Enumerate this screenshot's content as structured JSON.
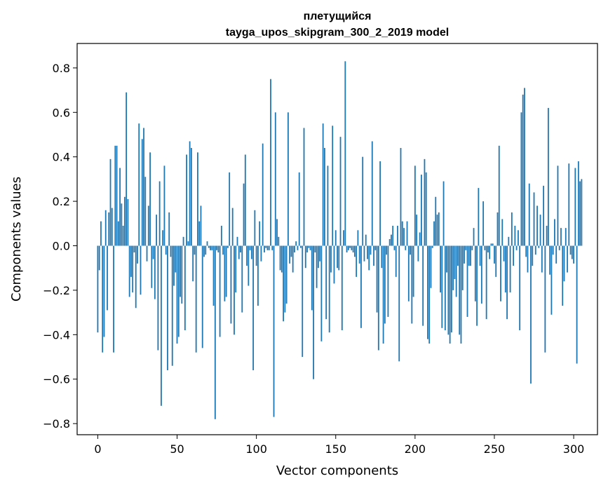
{
  "chart_data": {
    "type": "bar",
    "title_line1": "плетущийся",
    "title_line2": "tayga_upos_skipgram_300_2_2019 model",
    "xlabel": "Vector components",
    "ylabel": "Components values",
    "xlim": [
      -13,
      315
    ],
    "ylim": [
      -0.85,
      0.91
    ],
    "xticks": [
      0,
      50,
      100,
      150,
      200,
      250,
      300
    ],
    "xtick_labels": [
      "0",
      "50",
      "100",
      "150",
      "200",
      "250",
      "300"
    ],
    "yticks": [
      -0.8,
      -0.6,
      -0.4,
      -0.2,
      0.0,
      0.2,
      0.4,
      0.6,
      0.8
    ],
    "ytick_labels": [
      "−0.8",
      "−0.6",
      "−0.4",
      "−0.2",
      "0.0",
      "0.2",
      "0.4",
      "0.6",
      "0.8"
    ],
    "bar_color": "#1f77b4",
    "values": [
      -0.39,
      -0.11,
      0.11,
      -0.48,
      -0.41,
      0.16,
      -0.29,
      0.15,
      0.39,
      0.17,
      -0.48,
      0.45,
      0.45,
      0.11,
      0.35,
      0.19,
      0.09,
      0.22,
      0.69,
      0.21,
      -0.23,
      -0.14,
      -0.21,
      -0.03,
      -0.28,
      -0.08,
      0.55,
      -0.22,
      0.48,
      0.53,
      0.31,
      -0.07,
      0.18,
      0.42,
      -0.19,
      -0.06,
      -0.24,
      0.14,
      -0.47,
      0.29,
      -0.72,
      0.07,
      0.36,
      -0.04,
      -0.56,
      0.15,
      -0.05,
      -0.54,
      -0.18,
      -0.12,
      -0.44,
      -0.41,
      -0.23,
      -0.26,
      0.04,
      -0.38,
      0.41,
      0.02,
      0.47,
      0.44,
      -0.16,
      -0.04,
      -0.48,
      0.42,
      0.11,
      0.18,
      -0.46,
      -0.05,
      -0.04,
      0.02,
      -0.01,
      -0.02,
      -0.02,
      -0.27,
      -0.78,
      -0.02,
      -0.03,
      -0.41,
      0.09,
      -0.04,
      -0.25,
      -0.23,
      -0.01,
      0.33,
      -0.35,
      0.17,
      -0.4,
      -0.21,
      0.04,
      -0.06,
      -0.03,
      -0.3,
      0.28,
      0.41,
      -0.09,
      -0.18,
      -0.02,
      -0.06,
      -0.56,
      0.16,
      -0.09,
      -0.27,
      0.11,
      -0.07,
      0.46,
      -0.03,
      -0.01,
      -0.02,
      -0.02,
      0.75,
      -0.02,
      -0.77,
      0.6,
      0.12,
      0.04,
      -0.11,
      -0.12,
      -0.34,
      -0.3,
      -0.26,
      0.6,
      -0.08,
      -0.05,
      -0.12,
      -0.03,
      0.02,
      -0.02,
      0.33,
      -0.01,
      -0.5,
      0.53,
      -0.1,
      -0.03,
      -0.01,
      -0.02,
      -0.29,
      -0.6,
      -0.03,
      -0.19,
      -0.1,
      -0.07,
      -0.43,
      0.55,
      0.44,
      -0.33,
      0.36,
      -0.39,
      -0.12,
      0.54,
      -0.17,
      0.07,
      -0.1,
      -0.11,
      0.49,
      -0.38,
      0.07,
      0.83,
      -0.03,
      -0.02,
      -0.01,
      -0.02,
      -0.03,
      -0.05,
      -0.14,
      0.07,
      -0.08,
      -0.37,
      0.4,
      -0.07,
      0.05,
      -0.06,
      -0.11,
      -0.04,
      0.47,
      -0.09,
      -0.02,
      -0.3,
      -0.47,
      0.38,
      -0.1,
      -0.44,
      -0.35,
      -0.04,
      -0.32,
      0.03,
      0.05,
      0.09,
      -0.02,
      -0.14,
      0.09,
      -0.52,
      0.44,
      0.11,
      0.08,
      -0.02,
      0.11,
      -0.25,
      -0.04,
      -0.35,
      -0.23,
      0.36,
      0.14,
      -0.07,
      0.06,
      0.32,
      -0.36,
      0.39,
      0.33,
      -0.42,
      -0.44,
      -0.19,
      -0.01,
      0.11,
      0.22,
      0.14,
      0.15,
      -0.21,
      -0.37,
      0.29,
      -0.38,
      -0.12,
      -0.4,
      -0.44,
      -0.39,
      -0.2,
      -0.15,
      -0.23,
      -0.09,
      -0.4,
      -0.44,
      -0.2,
      -0.08,
      -0.02,
      -0.32,
      -0.09,
      -0.09,
      -0.02,
      0.08,
      -0.25,
      -0.36,
      0.26,
      -0.09,
      -0.26,
      0.2,
      -0.02,
      -0.33,
      -0.03,
      -0.06,
      0.01,
      0.01,
      -0.08,
      -0.14,
      0.15,
      0.45,
      -0.25,
      0.12,
      -0.07,
      -0.21,
      -0.33,
      0.04,
      -0.21,
      0.15,
      -0.09,
      0.09,
      -0.02,
      0.07,
      -0.38,
      0.6,
      0.68,
      0.71,
      -0.05,
      -0.12,
      0.28,
      -0.62,
      -0.09,
      0.24,
      -0.04,
      0.18,
      -0.01,
      0.14,
      -0.12,
      0.27,
      -0.48,
      0.09,
      0.62,
      -0.13,
      -0.31,
      -0.04,
      0.12,
      -0.08,
      0.36,
      -0.02,
      0.08,
      -0.27,
      -0.16,
      0.08,
      -0.12,
      0.37,
      -0.04,
      -0.06,
      -0.08,
      0.35,
      -0.53,
      0.38,
      0.29,
      0.3
    ]
  }
}
